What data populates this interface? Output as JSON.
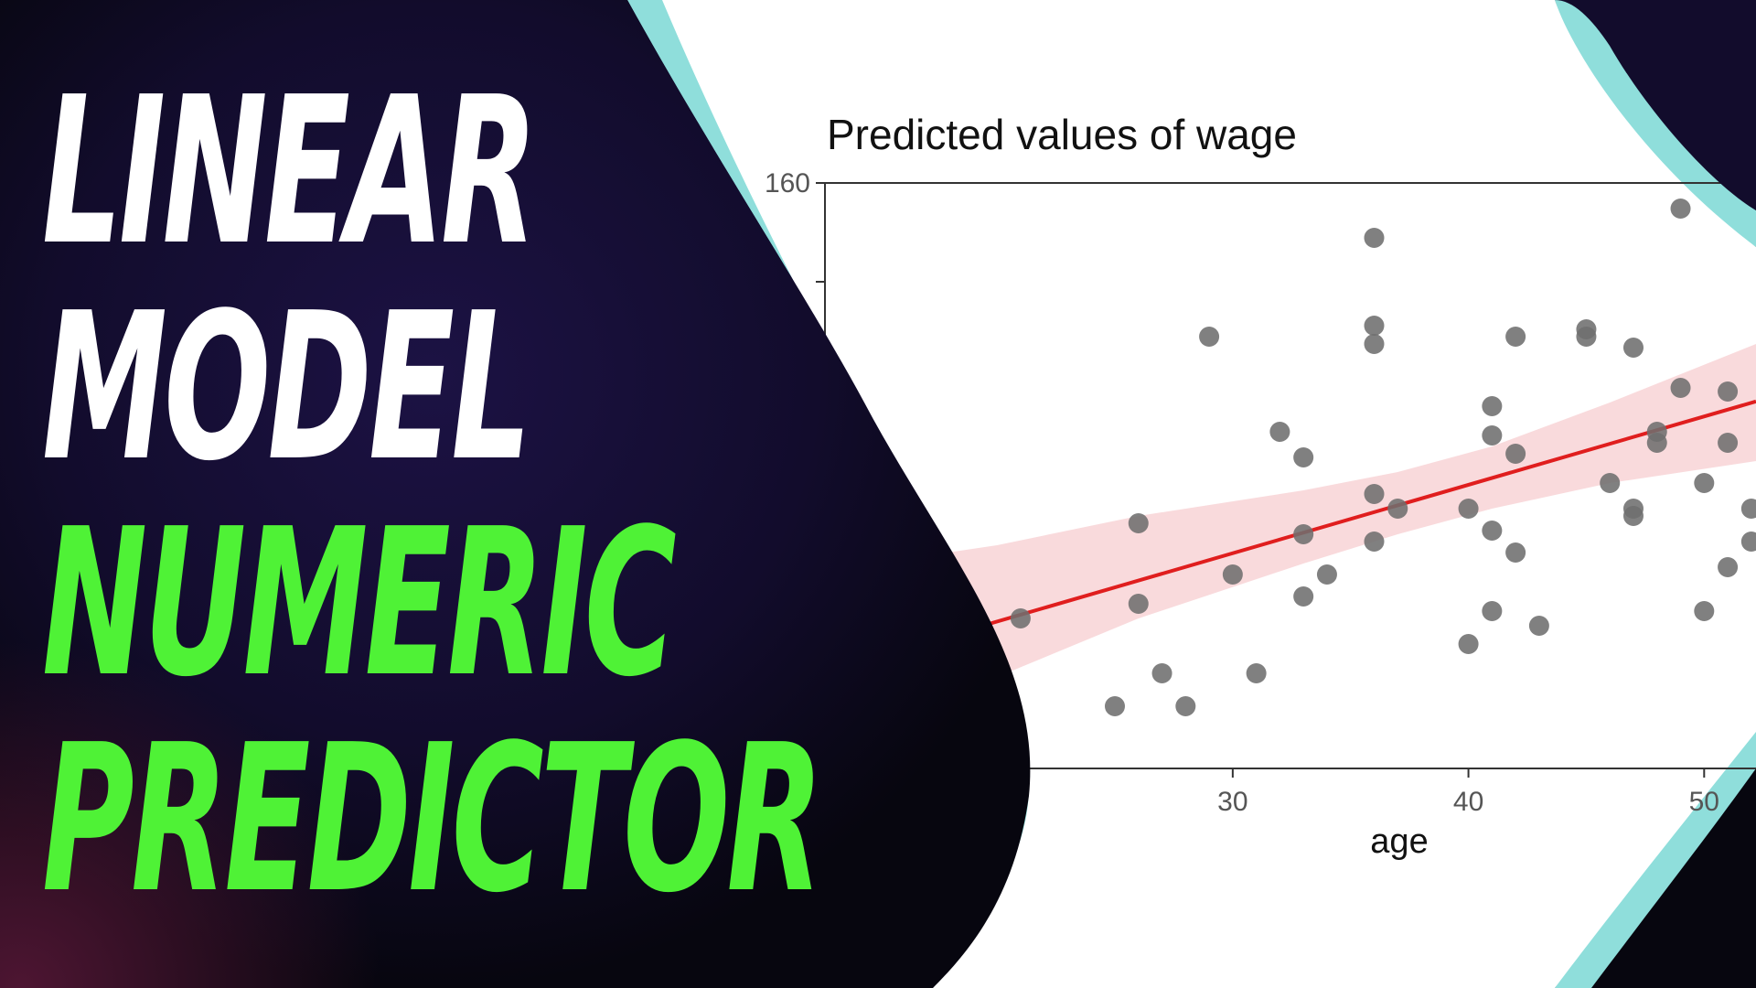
{
  "headline": {
    "line1": "LINEAR",
    "line2": "MODEL",
    "line3": "NUMERIC",
    "line4": "PREDICTOR",
    "white_color": "#ffffff",
    "green_color": "#4ff236"
  },
  "colors": {
    "background_dark": "#0a0814",
    "background_purple": "#1c1244",
    "accent_cyan": "#8fdedb",
    "panel": "#ffffff",
    "points": "#6e6e6e",
    "fit_line": "#e01e1e",
    "confidence_band": "#f7cdd0"
  },
  "chart_data": {
    "type": "scatter",
    "title": "Predicted values of wage",
    "xlabel": "age",
    "xlim": [
      12.7,
      52.2
    ],
    "ylim": [
      0,
      160
    ],
    "xticks": [
      "30",
      "40",
      "50"
    ],
    "xtick_values": [
      30,
      40,
      50
    ],
    "yticks": [
      "160"
    ],
    "ytick_values": [
      160
    ],
    "ytick_marks": [
      133
    ],
    "grid": false,
    "legend": "none",
    "points": [
      {
        "x": 21,
        "y": 41
      },
      {
        "x": 25,
        "y": 17
      },
      {
        "x": 26,
        "y": 67
      },
      {
        "x": 26,
        "y": 45
      },
      {
        "x": 27,
        "y": 26
      },
      {
        "x": 28,
        "y": 17
      },
      {
        "x": 29,
        "y": 118
      },
      {
        "x": 30,
        "y": 53
      },
      {
        "x": 31,
        "y": 26
      },
      {
        "x": 32,
        "y": 92
      },
      {
        "x": 33,
        "y": 85
      },
      {
        "x": 33,
        "y": 64
      },
      {
        "x": 33,
        "y": 47
      },
      {
        "x": 34,
        "y": 53
      },
      {
        "x": 36,
        "y": 145
      },
      {
        "x": 36,
        "y": 121
      },
      {
        "x": 36,
        "y": 116
      },
      {
        "x": 36,
        "y": 75
      },
      {
        "x": 36,
        "y": 62
      },
      {
        "x": 37,
        "y": 71
      },
      {
        "x": 40,
        "y": 71
      },
      {
        "x": 40,
        "y": 34
      },
      {
        "x": 41,
        "y": 99
      },
      {
        "x": 41,
        "y": 91
      },
      {
        "x": 41,
        "y": 65
      },
      {
        "x": 41,
        "y": 43
      },
      {
        "x": 42,
        "y": 86
      },
      {
        "x": 42,
        "y": 59
      },
      {
        "x": 42,
        "y": 118
      },
      {
        "x": 43,
        "y": 39
      },
      {
        "x": 45,
        "y": 120
      },
      {
        "x": 45,
        "y": 118
      },
      {
        "x": 46,
        "y": 78
      },
      {
        "x": 47,
        "y": 115
      },
      {
        "x": 47,
        "y": 71
      },
      {
        "x": 47,
        "y": 69
      },
      {
        "x": 48,
        "y": 92
      },
      {
        "x": 48,
        "y": 89
      },
      {
        "x": 49,
        "y": 153
      },
      {
        "x": 49,
        "y": 104
      },
      {
        "x": 50,
        "y": 78
      },
      {
        "x": 50,
        "y": 43
      },
      {
        "x": 51,
        "y": 103
      },
      {
        "x": 51,
        "y": 89
      },
      {
        "x": 51,
        "y": 55
      },
      {
        "x": 52,
        "y": 71
      },
      {
        "x": 52,
        "y": 62
      }
    ],
    "fit_line": {
      "x": [
        12.7,
        52.2
      ],
      "y": [
        26.5,
        100.3
      ]
    },
    "confidence_band": {
      "x": [
        12.7,
        20,
        26,
        33,
        37,
        41,
        46,
        52.2
      ],
      "lower": [
        0,
        25,
        41,
        56,
        64,
        71,
        78,
        84
      ],
      "upper": [
        54,
        61,
        69,
        76,
        81,
        88,
        100,
        116
      ]
    }
  }
}
